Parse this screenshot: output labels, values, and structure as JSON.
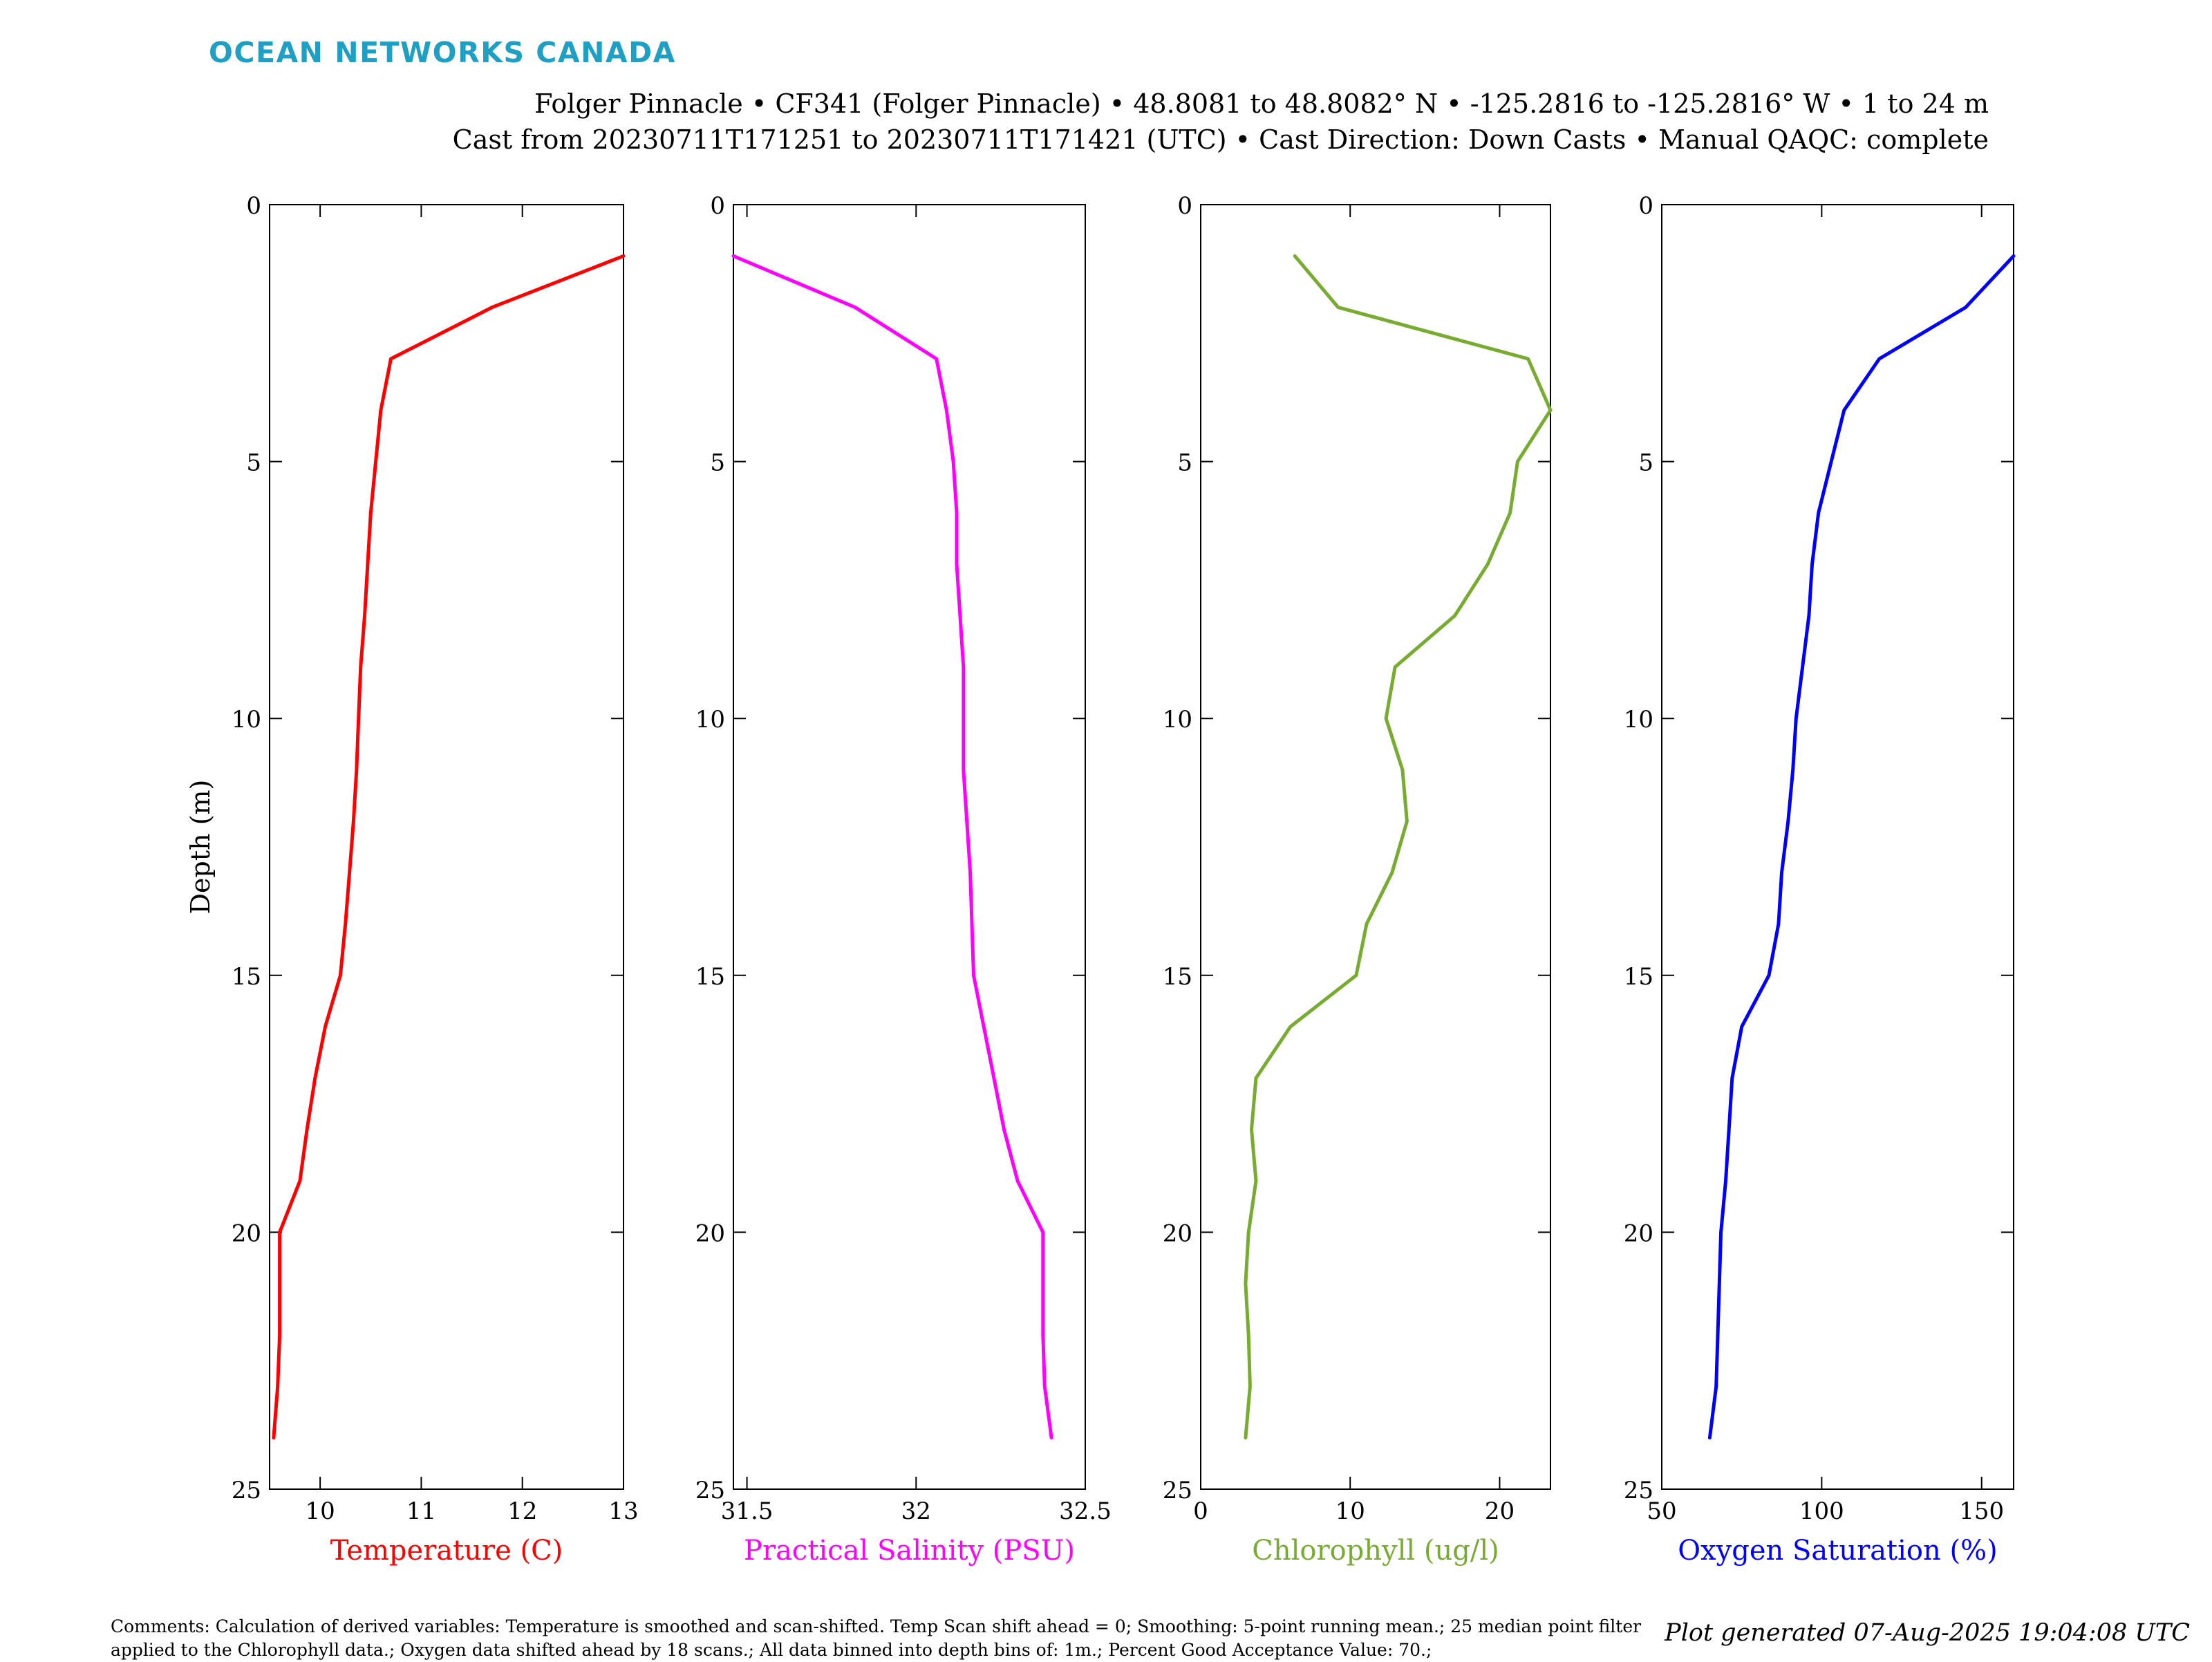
{
  "logo_text": "OCEAN NETWORKS CANADA",
  "header": {
    "line1": "Folger Pinnacle • CF341 (Folger Pinnacle) • 48.8081 to 48.8082° N • -125.2816 to -125.2816° W • 1 to 24 m",
    "line2": "Cast from 20230711T171251 to 20230711T171421 (UTC) • Cast Direction: Down Casts • Manual QAQC: complete"
  },
  "footer": {
    "comments": "Comments: Calculation of derived variables: Temperature is smoothed and scan-shifted. Temp Scan shift ahead = 0; Smoothing: 5-point running mean.; 25 median point filter applied to the Chlorophyll data.; Oxygen data shifted ahead by 18 scans.; All data binned into depth bins of: 1m.; Percent Good Acceptance Value: 70.;",
    "generated": "Plot generated 07-Aug-2025 19:04:08 UTC"
  },
  "chart_data": [
    {
      "type": "line",
      "xlabel": "Temperature (C)",
      "ylabel": "Depth (m)",
      "color": "#ff0000",
      "xlim": [
        9.5,
        13
      ],
      "ylim": [
        0,
        25
      ],
      "y_reversed": true,
      "xticks": [
        10,
        11,
        12,
        13
      ],
      "yticks": [
        0,
        5,
        10,
        15,
        20,
        25
      ],
      "x": [
        13.0,
        11.7,
        10.7,
        10.6,
        10.55,
        10.5,
        10.47,
        10.44,
        10.4,
        10.38,
        10.36,
        10.33,
        10.29,
        10.25,
        10.2,
        10.05,
        9.95,
        9.87,
        9.8,
        9.6,
        9.6,
        9.6,
        9.58,
        9.54
      ],
      "y": [
        1,
        2,
        3,
        4,
        5,
        6,
        7,
        8,
        9,
        10,
        11,
        12,
        13,
        14,
        15,
        16,
        17,
        18,
        19,
        20,
        21,
        22,
        23,
        24
      ]
    },
    {
      "type": "line",
      "xlabel": "Practical Salinity (PSU)",
      "ylabel": "",
      "color": "#ff00ff",
      "xlim": [
        31.46,
        32.5
      ],
      "ylim": [
        0,
        25
      ],
      "y_reversed": true,
      "xticks": [
        31.5,
        32,
        32.5
      ],
      "yticks": [
        0,
        5,
        10,
        15,
        20,
        25
      ],
      "x": [
        31.46,
        31.82,
        32.06,
        32.09,
        32.11,
        32.12,
        32.12,
        32.13,
        32.14,
        32.14,
        32.14,
        32.15,
        32.16,
        32.165,
        32.17,
        32.2,
        32.23,
        32.26,
        32.3,
        32.375,
        32.375,
        32.375,
        32.38,
        32.4
      ],
      "y": [
        1,
        2,
        3,
        4,
        5,
        6,
        7,
        8,
        9,
        10,
        11,
        12,
        13,
        14,
        15,
        16,
        17,
        18,
        19,
        20,
        21,
        22,
        23,
        24
      ]
    },
    {
      "type": "line",
      "xlabel": "Chlorophyll (ug/l)",
      "ylabel": "",
      "color": "#77ac30",
      "xlim": [
        0,
        23.4
      ],
      "ylim": [
        0,
        25
      ],
      "y_reversed": true,
      "xticks": [
        0,
        10,
        20
      ],
      "yticks": [
        0,
        5,
        10,
        15,
        20,
        25
      ],
      "x": [
        6.3,
        9.2,
        21.9,
        23.4,
        21.2,
        20.7,
        19.2,
        17.0,
        13.0,
        12.4,
        13.5,
        13.8,
        12.8,
        11.1,
        10.4,
        6.0,
        3.7,
        3.4,
        3.7,
        3.2,
        3.0,
        3.2,
        3.3,
        3.0
      ],
      "y": [
        1,
        2,
        3,
        4,
        5,
        6,
        7,
        8,
        9,
        10,
        11,
        12,
        13,
        14,
        15,
        16,
        17,
        18,
        19,
        20,
        21,
        22,
        23,
        24
      ]
    },
    {
      "type": "line",
      "xlabel": "Oxygen Saturation (%)",
      "ylabel": "",
      "color": "#0000ff",
      "xlim": [
        50,
        160
      ],
      "ylim": [
        0,
        25
      ],
      "y_reversed": true,
      "xticks": [
        50,
        100,
        150
      ],
      "yticks": [
        0,
        5,
        10,
        15,
        20,
        25
      ],
      "x": [
        160.0,
        145.0,
        118.0,
        107.0,
        103.0,
        99.0,
        97.0,
        96.0,
        94.0,
        92.0,
        91.0,
        89.5,
        87.5,
        86.5,
        83.5,
        75.0,
        72.0,
        71.0,
        70.0,
        68.5,
        68.0,
        67.5,
        67.0,
        65.0
      ],
      "y": [
        1,
        2,
        3,
        4,
        5,
        6,
        7,
        8,
        9,
        10,
        11,
        12,
        13,
        14,
        15,
        16,
        17,
        18,
        19,
        20,
        21,
        22,
        23,
        24
      ]
    }
  ]
}
